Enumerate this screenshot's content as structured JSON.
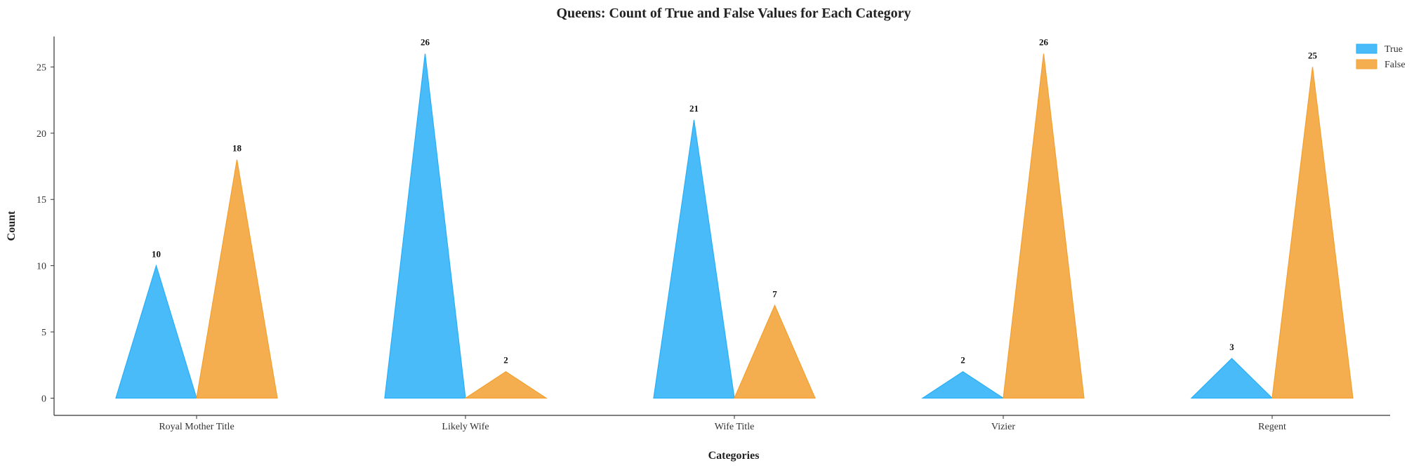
{
  "chart_data": {
    "type": "bar",
    "title": "Queens: Count of True and False Values for Each Category",
    "xlabel": "Categories",
    "ylabel": "Count",
    "categories": [
      "Royal Mother Title",
      "Likely Wife",
      "Wife Title",
      "Vizier",
      "Regent"
    ],
    "series": [
      {
        "name": "True",
        "values": [
          10,
          26,
          21,
          2,
          3
        ],
        "color": "#29aff7"
      },
      {
        "name": "False",
        "values": [
          18,
          2,
          7,
          26,
          25
        ],
        "color": "#f2a030"
      }
    ],
    "ylim": [
      -1.3,
      27.3
    ],
    "yticks": [
      0,
      5,
      10,
      15,
      20,
      25
    ],
    "grid": false,
    "legend": "top-right",
    "mark_shape": "triangle"
  }
}
